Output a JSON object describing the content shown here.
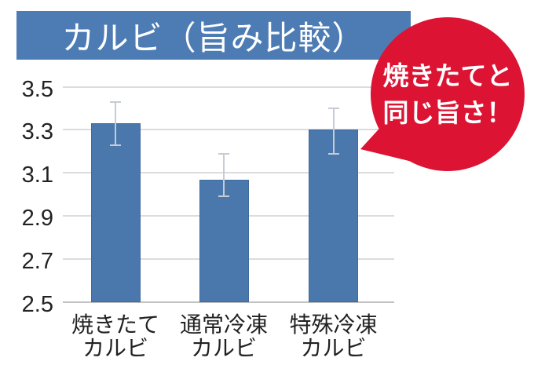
{
  "header": {
    "title": "カルビ（旨み比較）"
  },
  "bubble": {
    "line1": "焼きたてと",
    "line2": "同じ旨さ！"
  },
  "colors": {
    "banner_blue": "#4d7cb5",
    "bar_blue": "#4a78ad",
    "bar_border": "#3f6a9c",
    "accent_red": "#dc1332",
    "gridline": "#dcdcdc",
    "baseline": "#c2c2c2",
    "errorbar": "#c6ccd3",
    "text_dark": "#222222"
  },
  "chart_data": {
    "type": "bar",
    "title": "カルビ（旨み比較）",
    "categories": [
      "焼きたてカルビ",
      "通常冷凍カルビ",
      "特殊冷凍カルビ"
    ],
    "category_lines": [
      [
        "焼きたて",
        "カルビ"
      ],
      [
        "通常冷凍",
        "カルビ"
      ],
      [
        "特殊冷凍",
        "カルビ"
      ]
    ],
    "values": [
      3.33,
      3.07,
      3.3
    ],
    "error_plus": [
      0.1,
      0.12,
      0.1
    ],
    "error_minus": [
      0.1,
      0.08,
      0.11
    ],
    "ylim": [
      2.5,
      3.5
    ],
    "yticks": [
      3.5,
      3.3,
      3.1,
      2.9,
      2.7,
      2.5
    ],
    "xlabel": "",
    "ylabel": "",
    "grid": true,
    "legend": false,
    "annotation": "焼きたてと同じ旨さ！"
  }
}
